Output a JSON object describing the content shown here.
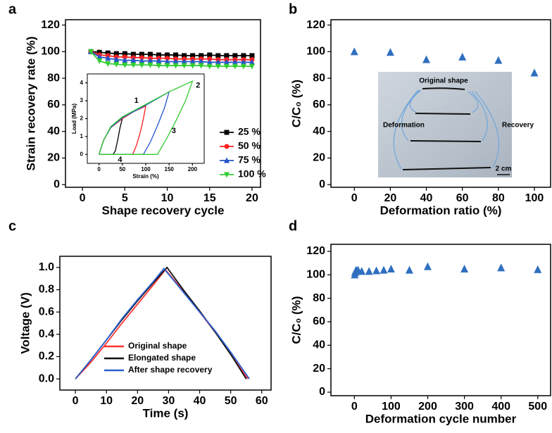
{
  "chart_data": [
    {
      "type": "line",
      "panel": "a",
      "xlabel": "Shape recovery cycle",
      "ylabel": "Strain recovery rate (%)",
      "xlim": [
        -2,
        21
      ],
      "xticks": [
        0,
        5,
        10,
        15,
        20
      ],
      "ylim": [
        -2,
        124
      ],
      "yticks": [
        0,
        20,
        40,
        60,
        80,
        100,
        120
      ],
      "legend": "right",
      "x": [
        1,
        2,
        3,
        4,
        5,
        6,
        7,
        8,
        9,
        10,
        11,
        12,
        13,
        14,
        15,
        16,
        17,
        18,
        19,
        20
      ],
      "series": [
        {
          "name": "25 %",
          "color": "#000000",
          "marker": "square",
          "values": [
            100,
            99.5,
            99,
            98.5,
            98.5,
            98,
            98,
            98,
            97.5,
            97.5,
            97.5,
            97,
            97,
            97,
            97.5,
            97,
            97,
            97,
            97,
            97
          ]
        },
        {
          "name": "50 %",
          "color": "#ff2020",
          "marker": "circle",
          "values": [
            100,
            97.5,
            97,
            96,
            96,
            95.5,
            95.5,
            95,
            95,
            95,
            94.5,
            94.5,
            94.5,
            94.5,
            94.5,
            94,
            94,
            94,
            94,
            94
          ]
        },
        {
          "name": "75 %",
          "color": "#2255cc",
          "marker": "triangle-up",
          "values": [
            100,
            96,
            95,
            94,
            93.5,
            93.5,
            93,
            93,
            93,
            92.5,
            92.5,
            92.5,
            92.5,
            92.5,
            92,
            92,
            92,
            92,
            92,
            92
          ]
        },
        {
          "name": "100 %",
          "color": "#33cc33",
          "marker": "triangle-down",
          "values": [
            100,
            93,
            91,
            90.5,
            90,
            90,
            90,
            90,
            89.5,
            89.5,
            89.5,
            89.5,
            89.5,
            89.5,
            89,
            89,
            89,
            89,
            89,
            89
          ]
        }
      ]
    },
    {
      "type": "line",
      "xlabel": "Strain (%)",
      "ylabel": "Load (MPa)",
      "xlim": [
        -25,
        225
      ],
      "xticks": [
        0,
        50,
        100,
        150,
        200
      ],
      "ylim": [
        -0.5,
        4.5
      ],
      "yticks": [
        0,
        1,
        2,
        3,
        4
      ],
      "annotations": [
        "1",
        "2",
        "3",
        "4"
      ],
      "series": [
        {
          "color": "#000000",
          "x": [
            0,
            10,
            25,
            50,
            45,
            40,
            35,
            30,
            0
          ],
          "values": [
            0,
            0.8,
            1.5,
            2.0,
            1.5,
            0.8,
            0.2,
            0,
            0
          ]
        },
        {
          "color": "#ff2020",
          "x": [
            0,
            10,
            25,
            50,
            75,
            100,
            95,
            88,
            80,
            72,
            0
          ],
          "values": [
            0,
            0.8,
            1.5,
            2.0,
            2.4,
            2.7,
            2.0,
            1.2,
            0.5,
            0,
            0
          ]
        },
        {
          "color": "#2255cc",
          "x": [
            0,
            10,
            25,
            50,
            100,
            150,
            140,
            125,
            110,
            95,
            0
          ],
          "values": [
            0,
            0.8,
            1.5,
            2.05,
            2.75,
            3.5,
            2.6,
            1.6,
            0.7,
            0,
            0
          ]
        },
        {
          "color": "#33cc33",
          "x": [
            0,
            10,
            25,
            50,
            100,
            150,
            200,
            185,
            165,
            145,
            125,
            0
          ],
          "values": [
            0,
            0.8,
            1.55,
            2.1,
            2.8,
            3.5,
            4.1,
            3.0,
            1.9,
            0.9,
            0,
            0
          ]
        }
      ]
    },
    {
      "type": "scatter",
      "panel": "b",
      "xlabel": "Deformation ratio (%)",
      "ylabel": "C/C₀ (%)",
      "xlim": [
        -13,
        109
      ],
      "xticks": [
        0,
        20,
        40,
        60,
        80,
        100
      ],
      "ylim": [
        -2,
        124
      ],
      "yticks": [
        0,
        20,
        40,
        60,
        80,
        100,
        120
      ],
      "color": "#2f6fc0",
      "marker": "triangle-up",
      "x": [
        0,
        20,
        40,
        60,
        80,
        100
      ],
      "values": [
        100,
        99.5,
        94,
        96,
        93.5,
        84
      ],
      "inset_labels": [
        "Original shape",
        "Deformation",
        "Recovery",
        "2 cm"
      ]
    },
    {
      "type": "line",
      "panel": "c",
      "xlabel": "Time (s)",
      "ylabel": "Voltage (V)",
      "legend": "lower center",
      "xlim": [
        -5,
        63
      ],
      "xticks": [
        0,
        10,
        20,
        30,
        40,
        50,
        60
      ],
      "ylim": [
        -0.1,
        1.1
      ],
      "yticks": [
        {
          "value": 0,
          "label": "0.0"
        },
        0.2,
        0.4,
        0.6,
        0.8,
        {
          "value": 1,
          "label": "1.0"
        }
      ],
      "series": [
        {
          "name": "Original shape",
          "color": "#ff3333",
          "x": [
            0,
            5,
            10,
            15,
            20,
            25,
            29,
            35,
            40,
            45,
            50,
            55.5
          ],
          "values": [
            0,
            0.15,
            0.32,
            0.5,
            0.67,
            0.84,
            0.98,
            0.78,
            0.6,
            0.42,
            0.22,
            0
          ]
        },
        {
          "name": "Elongated shape",
          "color": "#111111",
          "x": [
            0,
            5,
            10,
            15,
            20,
            25,
            29.5,
            35,
            40,
            45,
            50,
            55
          ],
          "values": [
            0,
            0.17,
            0.35,
            0.53,
            0.7,
            0.86,
            1.0,
            0.79,
            0.61,
            0.42,
            0.22,
            0
          ]
        },
        {
          "name": "After shape recovery",
          "color": "#2a5fd0",
          "x": [
            0,
            5,
            10,
            15,
            20,
            25,
            28.5,
            35,
            40,
            45,
            50,
            56
          ],
          "values": [
            0,
            0.17,
            0.35,
            0.54,
            0.71,
            0.87,
            0.99,
            0.77,
            0.6,
            0.43,
            0.24,
            0
          ]
        }
      ]
    },
    {
      "type": "scatter",
      "panel": "d",
      "xlabel": "Deformation cycle number",
      "ylabel": "C/C₀ (%)",
      "xlim": [
        -64,
        535
      ],
      "xticks": [
        0,
        100,
        200,
        300,
        400,
        500
      ],
      "ylim": [
        -3,
        126
      ],
      "yticks": [
        0,
        20,
        40,
        60,
        80,
        100,
        120
      ],
      "color": "#2f6fc0",
      "marker": "triangle-up",
      "x": [
        1,
        2,
        3,
        5,
        7,
        10,
        20,
        40,
        60,
        80,
        100,
        150,
        200,
        300,
        400,
        500
      ],
      "values": [
        100,
        102,
        103,
        104,
        103,
        104,
        103,
        103,
        103.5,
        104,
        105,
        104,
        107,
        105,
        106,
        104.5
      ]
    }
  ]
}
